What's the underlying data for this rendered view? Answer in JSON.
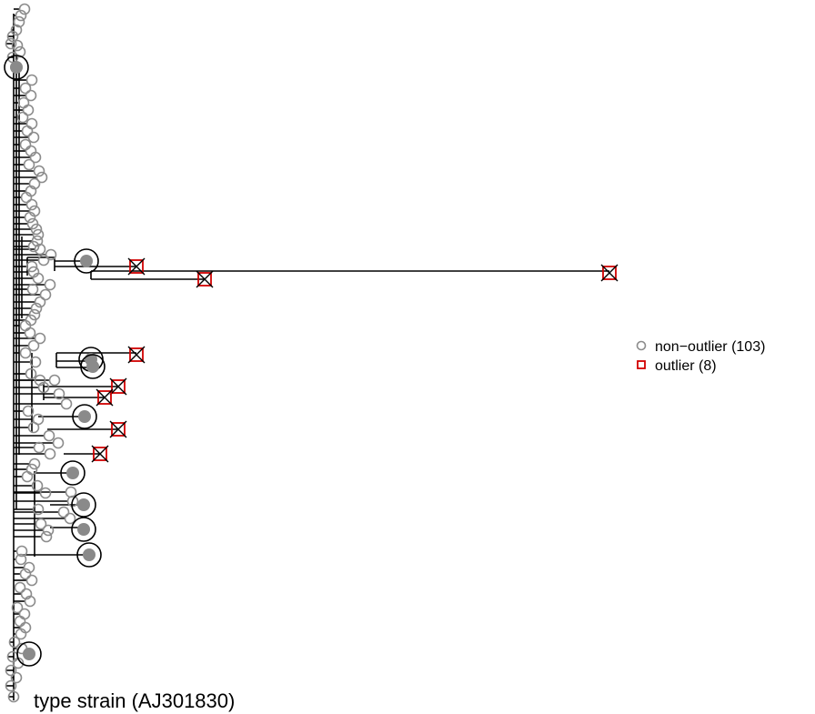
{
  "figure": {
    "type_strain_label": "type strain (AJ301830)",
    "legend": {
      "non_outlier": {
        "label": "non−outlier (103)",
        "symbol": "open-circle",
        "color": "#8c8c8c"
      },
      "outlier": {
        "label": "outlier (8)",
        "symbol": "open-square",
        "color": "#d10000"
      }
    },
    "colors": {
      "branch": "#000000",
      "non_outlier_marker": "#8c8c8c",
      "highlight_dot": "#8a8a8a",
      "outlier_marker": "#d10000"
    }
  }
}
